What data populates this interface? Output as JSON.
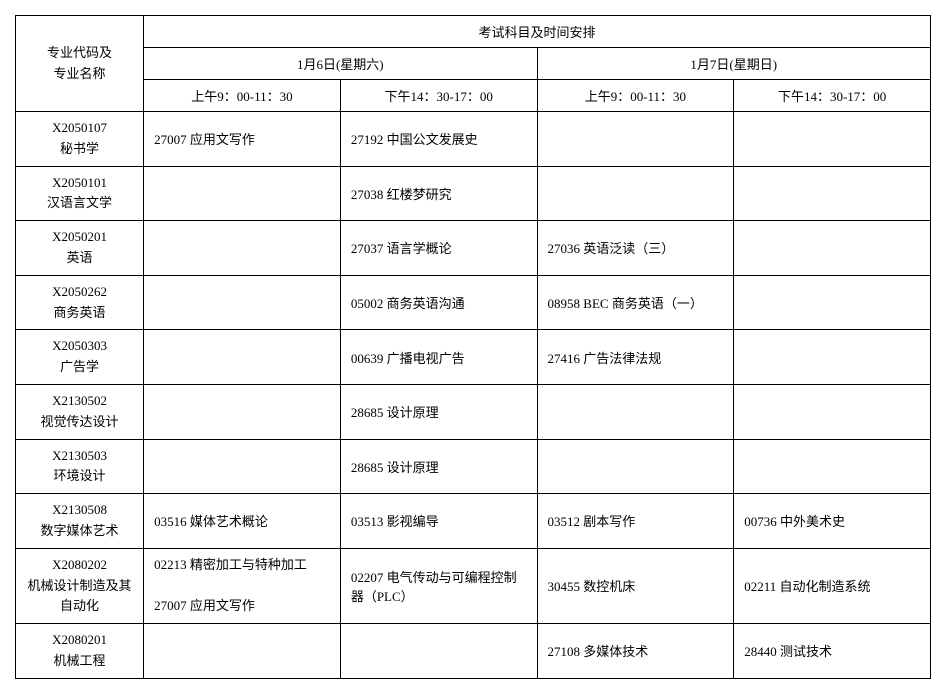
{
  "headers": {
    "major": "专业代码及\n专业名称",
    "top": "考试科目及时间安排",
    "day1": "1月6日(星期六)",
    "day2": "1月7日(星期日)",
    "slot1": "上午9：00-11：30",
    "slot2": "下午14：30-17：00",
    "slot3": "上午9：00-11：30",
    "slot4": "下午14：30-17：00"
  },
  "rows": [
    {
      "major": "X2050107\n秘书学",
      "c1": "27007 应用文写作",
      "c2": "27192 中国公文发展史",
      "c3": "",
      "c4": ""
    },
    {
      "major": "X2050101\n汉语言文学",
      "c1": "",
      "c2": "27038 红楼梦研究",
      "c3": "",
      "c4": ""
    },
    {
      "major": "X2050201\n英语",
      "c1": "",
      "c2": "27037 语言学概论",
      "c3": "27036 英语泛读（三）",
      "c4": ""
    },
    {
      "major": "X2050262\n商务英语",
      "c1": "",
      "c2": "05002 商务英语沟通",
      "c3": "08958 BEC 商务英语（一）",
      "c4": ""
    },
    {
      "major": "X2050303\n广告学",
      "c1": "",
      "c2": "00639 广播电视广告",
      "c3": "27416 广告法律法规",
      "c4": ""
    },
    {
      "major": "X2130502\n视觉传达设计",
      "c1": "",
      "c2": "28685 设计原理",
      "c3": "",
      "c4": ""
    },
    {
      "major": "X2130503\n环境设计",
      "c1": "",
      "c2": "28685 设计原理",
      "c3": "",
      "c4": ""
    },
    {
      "major": "X2130508\n数字媒体艺术",
      "c1": "03516 媒体艺术概论",
      "c2": "03513 影视编导",
      "c3": "03512 剧本写作",
      "c4": "00736 中外美术史"
    },
    {
      "major": "X2080202\n机械设计制造及其自动化",
      "c1": "02213 精密加工与特种加工\n\n27007 应用文写作",
      "c2": "02207 电气传动与可编程控制器（PLC）",
      "c3": "30455 数控机床",
      "c4": "02211 自动化制造系统"
    },
    {
      "major": "X2080201\n机械工程",
      "c1": "",
      "c2": "",
      "c3": "27108 多媒体技术",
      "c4": "28440 测试技术"
    }
  ],
  "style": {
    "border_color": "#000000",
    "background_color": "#ffffff",
    "text_color": "#000000",
    "font_family": "SimSun",
    "base_fontsize": 13
  }
}
